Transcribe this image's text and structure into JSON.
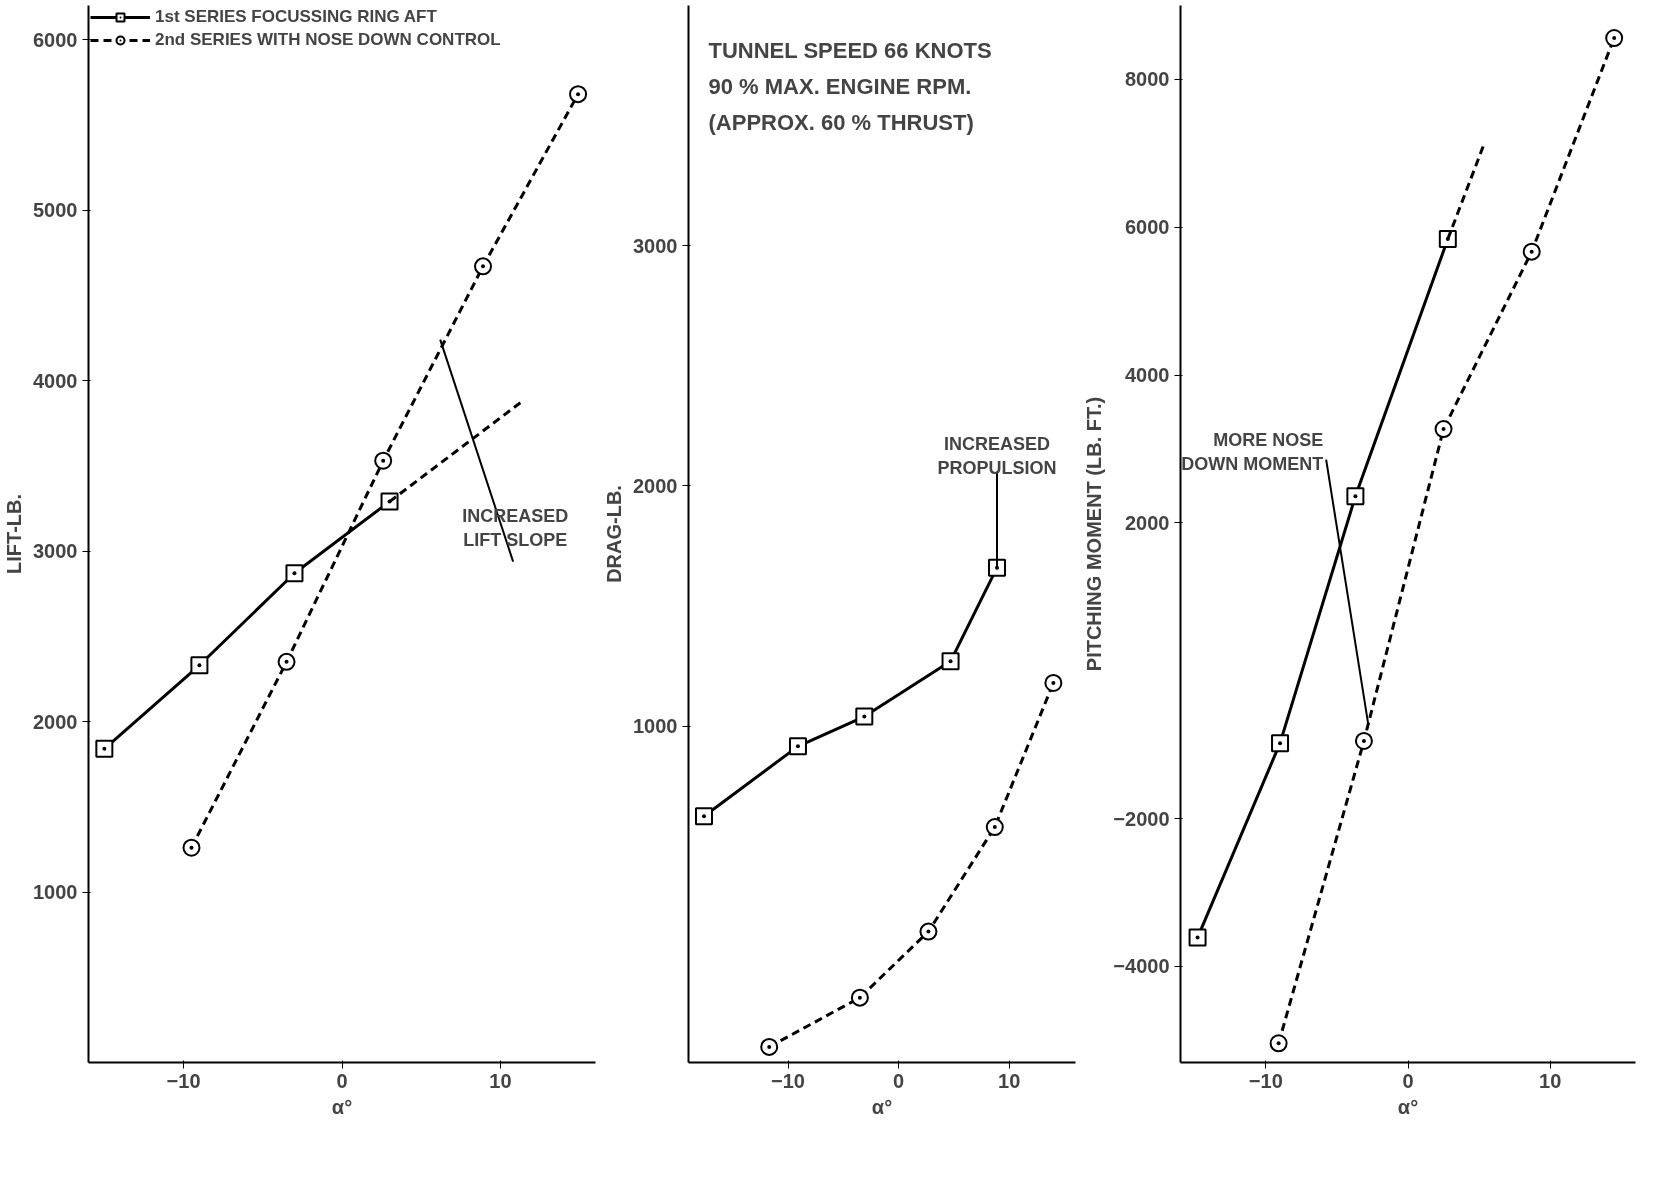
{
  "chart_data": [
    {
      "type": "line",
      "ylabel": "LIFT-LB.",
      "xlabel": "α°",
      "xlim": [
        -16,
        16
      ],
      "ylim": [
        0,
        6200
      ],
      "xticks": [
        -10,
        0,
        10
      ],
      "yticks": [
        1000,
        2000,
        3000,
        4000,
        5000,
        6000
      ],
      "legend": "top",
      "grid": false,
      "series": [
        {
          "name": "1st SERIES FOCUSSING RING AFT",
          "color": "#000000",
          "marker": "square",
          "line_style": "solid",
          "x": [
            -15,
            -9,
            -3,
            3
          ],
          "values": [
            1840,
            2330,
            2870,
            3290
          ]
        },
        {
          "name": "2nd SERIES WITH NOSE DOWN CONTROL",
          "color": "#000000",
          "marker": "circle",
          "line_style": "dashed",
          "x": [
            -9.5,
            -3.5,
            2.6,
            8.9,
            14.9
          ],
          "values": [
            1260,
            2350,
            3530,
            4670,
            5680
          ]
        },
        {
          "color": "#000000",
          "marker": "none",
          "line_style": "dashed",
          "x": [
            3,
            11.4
          ],
          "values": [
            3290,
            3880
          ]
        }
      ],
      "annotations": [
        {
          "text": "INCREASED LIFT SLOPE",
          "x": 6.2,
          "y": 4240
        }
      ]
    },
    {
      "type": "line",
      "ylabel": "DRAG-LB.",
      "xlabel": "α°",
      "xlim": [
        -19,
        16
      ],
      "ylim": [
        -400,
        4000
      ],
      "xticks": [
        -10,
        0,
        10
      ],
      "yticks": [
        1000,
        2000,
        3000
      ],
      "grid": false,
      "series": [
        {
          "color": "#000000",
          "marker": "square",
          "line_style": "solid",
          "x": [
            -17.6,
            -9.1,
            -3.1,
            4.7,
            8.9
          ],
          "values": [
            625,
            916,
            1040,
            1270,
            1660
          ]
        },
        {
          "color": "#000000",
          "marker": "circle",
          "line_style": "dashed",
          "x": [
            -11.7,
            -3.5,
            2.7,
            8.7,
            14
          ],
          "values": [
            -335,
            -130,
            145,
            580,
            1180
          ]
        }
      ],
      "annotations": [
        "TUNNEL SPEED 66 KNOTS",
        "90 % MAX. ENGINE RPM.",
        "(APPROX. 60 % THRUST)",
        {
          "text": "INCREASED PROPULSION",
          "x": 8.9,
          "y": 1660
        }
      ]
    },
    {
      "type": "line",
      "ylabel": "PITCHING MOMENT (LB. FT.)",
      "xlabel": "α°",
      "xlim": [
        -16,
        16
      ],
      "ylim": [
        -5300,
        9000
      ],
      "xticks": [
        -10,
        0,
        10
      ],
      "yticks": [
        -4000,
        -2000,
        2000,
        4000,
        6000,
        8000
      ],
      "grid": false,
      "series": [
        {
          "color": "#000000",
          "marker": "square",
          "line_style": "solid",
          "x": [
            -14.8,
            -9,
            -3.7,
            2.8
          ],
          "values": [
            -3610,
            -980,
            2360,
            5840
          ]
        },
        {
          "color": "#000000",
          "marker": "none",
          "line_style": "dashed",
          "x": [
            2.8,
            5.3
          ],
          "values": [
            5840,
            7100
          ]
        },
        {
          "color": "#000000",
          "marker": "circle",
          "line_style": "dashed",
          "x": [
            -9.1,
            -3.1,
            2.5,
            8.7,
            14.5
          ],
          "values": [
            -5040,
            -950,
            3270,
            5670,
            8560
          ]
        }
      ],
      "annotations": [
        {
          "text": "MORE NOSE DOWN MOMENT",
          "x": -2.8,
          "y": -720
        }
      ]
    }
  ]
}
